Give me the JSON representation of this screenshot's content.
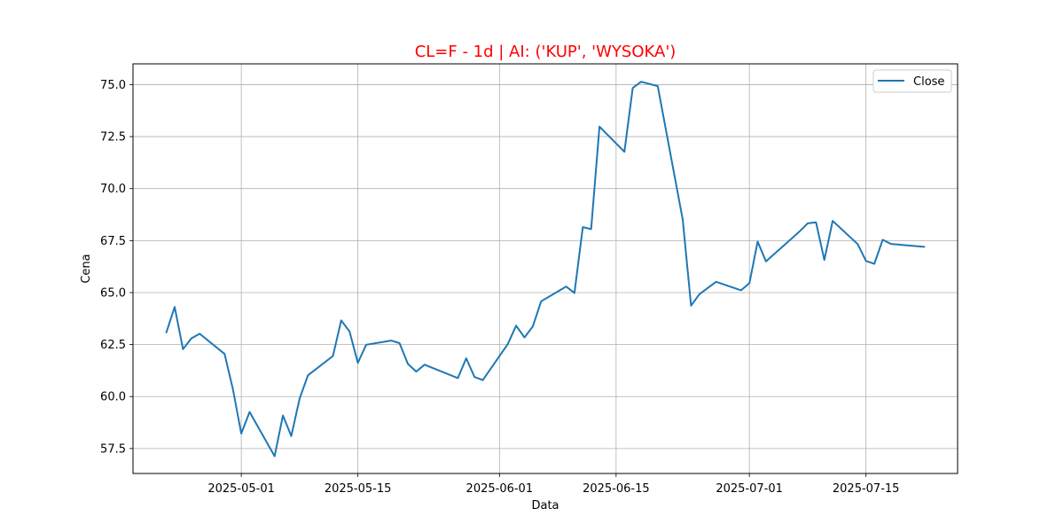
{
  "chart_data": {
    "type": "line",
    "title": "CL=F - 1d | AI: ('KUP', 'WYSOKA')",
    "title_color": "#ff0000",
    "xlabel": "Data",
    "ylabel": "Cena",
    "xlim": [
      "2025-04-18",
      "2025-07-26"
    ],
    "ylim": [
      56.3,
      76.0
    ],
    "x_ticks": [
      "2025-05-01",
      "2025-05-15",
      "2025-06-01",
      "2025-06-15",
      "2025-07-01",
      "2025-07-15"
    ],
    "y_ticks": [
      57.5,
      60.0,
      62.5,
      65.0,
      67.5,
      70.0,
      72.5,
      75.0
    ],
    "grid": true,
    "legend_position": "top-right",
    "series": [
      {
        "name": "Close",
        "color": "#1f77b4",
        "x": [
          "2025-04-22",
          "2025-04-23",
          "2025-04-24",
          "2025-04-25",
          "2025-04-26",
          "2025-04-29",
          "2025-04-30",
          "2025-05-01",
          "2025-05-02",
          "2025-05-05",
          "2025-05-06",
          "2025-05-07",
          "2025-05-08",
          "2025-05-09",
          "2025-05-12",
          "2025-05-13",
          "2025-05-14",
          "2025-05-15",
          "2025-05-16",
          "2025-05-19",
          "2025-05-20",
          "2025-05-21",
          "2025-05-22",
          "2025-05-23",
          "2025-05-27",
          "2025-05-28",
          "2025-05-29",
          "2025-05-30",
          "2025-06-02",
          "2025-06-03",
          "2025-06-04",
          "2025-06-05",
          "2025-06-06",
          "2025-06-09",
          "2025-06-10",
          "2025-06-11",
          "2025-06-12",
          "2025-06-13",
          "2025-06-16",
          "2025-06-17",
          "2025-06-18",
          "2025-06-20",
          "2025-06-23",
          "2025-06-24",
          "2025-06-25",
          "2025-06-27",
          "2025-06-30",
          "2025-07-01",
          "2025-07-02",
          "2025-07-03",
          "2025-07-07",
          "2025-07-08",
          "2025-07-09",
          "2025-07-10",
          "2025-07-11",
          "2025-07-14",
          "2025-07-15",
          "2025-07-16",
          "2025-07-17",
          "2025-07-18",
          "2025-07-22"
        ],
        "values": [
          63.08,
          64.31,
          62.28,
          62.8,
          63.02,
          62.05,
          60.35,
          58.22,
          59.26,
          57.13,
          59.09,
          58.1,
          59.9,
          61.02,
          61.95,
          63.66,
          63.13,
          61.62,
          62.49,
          62.69,
          62.57,
          61.57,
          61.2,
          61.53,
          60.89,
          61.84,
          60.94,
          60.79,
          62.52,
          63.41,
          62.84,
          63.37,
          64.58,
          65.29,
          64.98,
          68.15,
          68.05,
          72.98,
          71.77,
          74.84,
          75.14,
          74.93,
          68.51,
          64.37,
          64.92,
          65.52,
          65.11,
          65.45,
          67.45,
          66.5,
          67.93,
          68.33,
          68.38,
          66.57,
          68.45,
          67.33,
          66.52,
          66.38,
          67.54,
          67.34,
          67.2
        ]
      }
    ]
  }
}
